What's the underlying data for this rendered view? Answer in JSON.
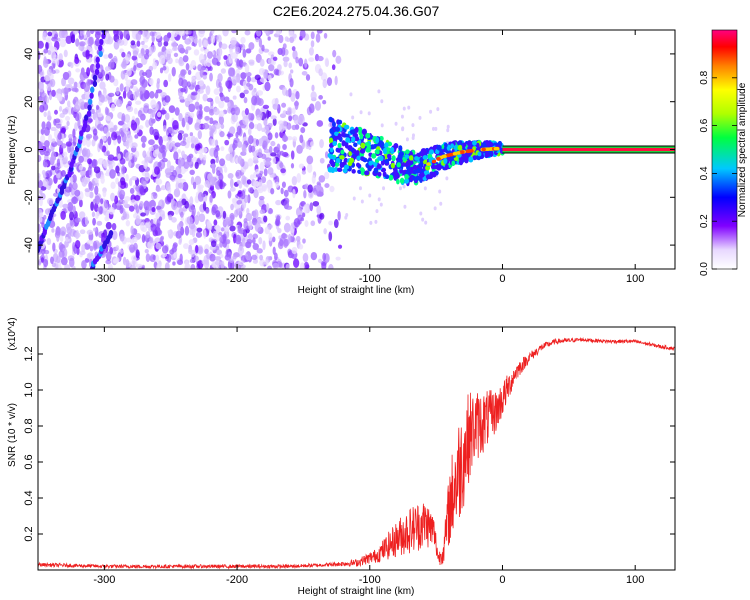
{
  "page_title": "C2E6.2024.275.04.36.G07",
  "chart_data": [
    {
      "type": "heatmap",
      "title": "C2E6.2024.275.04.36.G07",
      "xlabel": "Height of straight line (km)",
      "ylabel": "Frequency (Hz)",
      "xlim": [
        -350,
        130
      ],
      "ylim": [
        -50,
        50
      ],
      "x_ticks": [
        -300,
        -200,
        -100,
        0,
        100
      ],
      "y_ticks": [
        -40,
        -20,
        0,
        20,
        40
      ],
      "grid": false,
      "colorbar": {
        "label": "Normalized spectral amplitude",
        "range": [
          0,
          1
        ],
        "ticks": [
          0.0,
          0.2,
          0.4,
          0.6,
          0.8
        ],
        "tick_labels": [
          "0.0",
          "0.2",
          "0.4",
          "0.6",
          "0.8"
        ],
        "colormap": "rainbow"
      },
      "features": [
        {
          "kind": "noise-cloud",
          "x_range": [
            -350,
            -120
          ],
          "y_range": [
            -50,
            50
          ]
        },
        {
          "kind": "oblique-streak",
          "points": [
            [
              -350,
              -42
            ],
            [
              -338,
              -25
            ],
            [
              -325,
              -8
            ],
            [
              -312,
              15
            ],
            [
              -300,
              50
            ]
          ]
        },
        {
          "kind": "oblique-streak",
          "points": [
            [
              -310,
              -50
            ],
            [
              -295,
              -35
            ]
          ]
        },
        {
          "kind": "converging-signal",
          "points": [
            [
              -130,
              2
            ],
            [
              -110,
              0
            ],
            [
              -95,
              -3
            ],
            [
              -80,
              -6
            ],
            [
              -70,
              -8
            ],
            [
              -55,
              -6
            ],
            [
              -45,
              -3
            ],
            [
              -30,
              -1
            ],
            [
              -15,
              0
            ],
            [
              0,
              0.5
            ]
          ]
        },
        {
          "kind": "steady-carrier",
          "x_range": [
            0,
            130
          ],
          "y": 0
        }
      ]
    },
    {
      "type": "line",
      "xlabel": "Height of straight line (km)",
      "ylabel": "SNR (10 * v/v)",
      "y_exponent_label": "(x10^4)",
      "xlim": [
        -350,
        130
      ],
      "ylim": [
        0,
        1.35
      ],
      "x_ticks": [
        -300,
        -200,
        -100,
        0,
        100
      ],
      "y_ticks": [
        0.2,
        0.4,
        0.6,
        0.8,
        1.0,
        1.2
      ],
      "y_tick_labels": [
        "0.2",
        "0.4",
        "0.6",
        "0.8",
        "1.0",
        "1.2"
      ],
      "grid": false,
      "series": [
        {
          "color": "#ee2020",
          "x": [
            -350,
            -300,
            -250,
            -200,
            -160,
            -130,
            -110,
            -95,
            -85,
            -75,
            -65,
            -58,
            -52,
            -48,
            -44,
            -40,
            -35,
            -30,
            -25,
            -20,
            -15,
            -10,
            -5,
            0,
            10,
            20,
            30,
            40,
            60,
            80,
            100,
            120,
            130
          ],
          "y": [
            0.03,
            0.02,
            0.02,
            0.02,
            0.02,
            0.03,
            0.04,
            0.08,
            0.14,
            0.2,
            0.24,
            0.26,
            0.22,
            0.06,
            0.12,
            0.35,
            0.5,
            0.62,
            0.75,
            0.8,
            0.82,
            0.85,
            0.88,
            0.95,
            1.1,
            1.18,
            1.24,
            1.27,
            1.28,
            1.27,
            1.27,
            1.24,
            1.23
          ],
          "noise": [
            0.01,
            0.01,
            0.01,
            0.01,
            0.01,
            0.01,
            0.02,
            0.04,
            0.08,
            0.12,
            0.14,
            0.14,
            0.1,
            0.04,
            0.08,
            0.22,
            0.3,
            0.3,
            0.25,
            0.2,
            0.18,
            0.15,
            0.12,
            0.1,
            0.05,
            0.03,
            0.02,
            0.015,
            0.01,
            0.01,
            0.01,
            0.01,
            0.01
          ]
        }
      ]
    }
  ]
}
